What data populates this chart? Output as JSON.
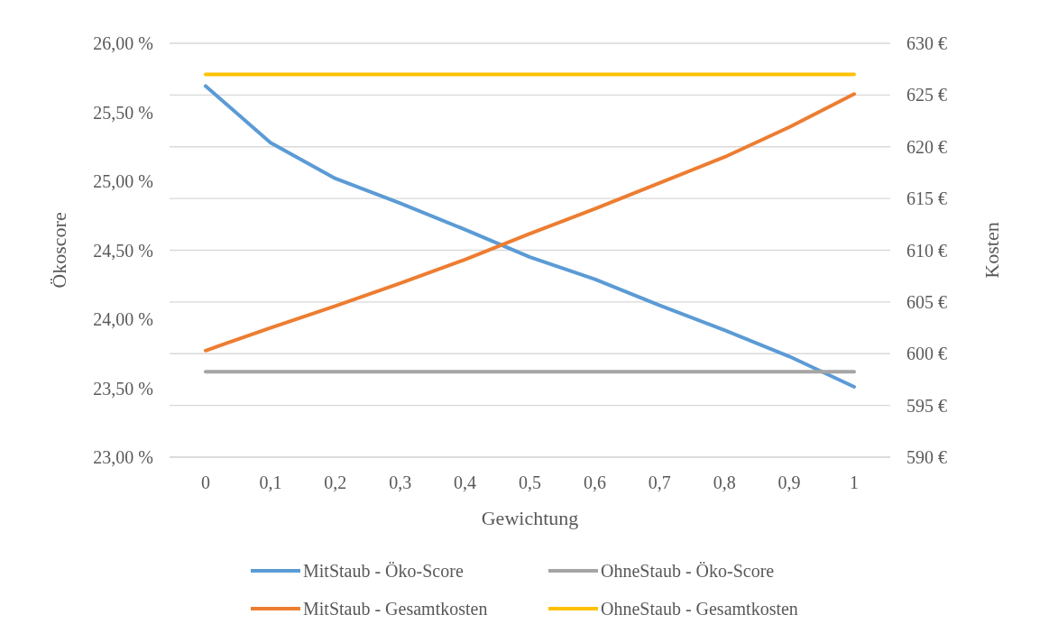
{
  "chart_data": {
    "type": "line",
    "xlabel": "Gewichtung",
    "ylabel": "Ökoscore",
    "y2label": "Kosten",
    "categories": [
      "0",
      "0,1",
      "0,2",
      "0,3",
      "0,4",
      "0,5",
      "0,6",
      "0,7",
      "0,8",
      "0,9",
      "1"
    ],
    "series": [
      {
        "name": "MitStaub - Öko-Score",
        "color": "#5b9bd5",
        "values": [
          25.69,
          25.28,
          25.02,
          24.84,
          24.65,
          24.45,
          24.29,
          24.1,
          23.92,
          23.73,
          23.51
        ]
      },
      {
        "name": "OhneStaub - Öko-Score",
        "color": "#a5a5a5",
        "values": [
          23.62,
          23.62,
          23.62,
          23.62,
          23.62,
          23.62,
          23.62,
          23.62,
          23.62,
          23.62,
          23.62
        ]
      },
      {
        "name": "MitStaub - Gesamtkosten",
        "color": "#ed7d31",
        "axis": "y2",
        "values": [
          600.3,
          602.5,
          604.6,
          606.8,
          609.1,
          611.6,
          614,
          616.5,
          619,
          621.9,
          625.1
        ]
      },
      {
        "name": "OhneStaub - Gesamtkosten",
        "color": "#ffc000",
        "axis": "y2",
        "values": [
          627,
          627,
          627,
          627,
          627,
          627,
          627,
          627,
          627,
          627,
          627
        ]
      }
    ],
    "ylim": [
      23,
      26
    ],
    "yticks": [
      {
        "value": 23,
        "label": "23,00 %"
      },
      {
        "value": 23.5,
        "label": "23,50 %"
      },
      {
        "value": 24,
        "label": "24,00 %"
      },
      {
        "value": 24.5,
        "label": "24,50 %"
      },
      {
        "value": 25,
        "label": "25,00 %"
      },
      {
        "value": 25.5,
        "label": "25,50 %"
      },
      {
        "value": 26,
        "label": "26,00 %"
      }
    ],
    "y2lim": [
      590,
      630
    ],
    "y2ticks": [
      {
        "value": 590,
        "label": "590 €"
      },
      {
        "value": 595,
        "label": "595 €"
      },
      {
        "value": 600,
        "label": "600 €"
      },
      {
        "value": 605,
        "label": "605 €"
      },
      {
        "value": 610,
        "label": "610 €"
      },
      {
        "value": 615,
        "label": "615 €"
      },
      {
        "value": 620,
        "label": "620 €"
      },
      {
        "value": 625,
        "label": "625 €"
      },
      {
        "value": 630,
        "label": "630 €"
      }
    ],
    "grid": "y2",
    "legend": "bottom",
    "marker": "none",
    "line_style": "solid"
  }
}
